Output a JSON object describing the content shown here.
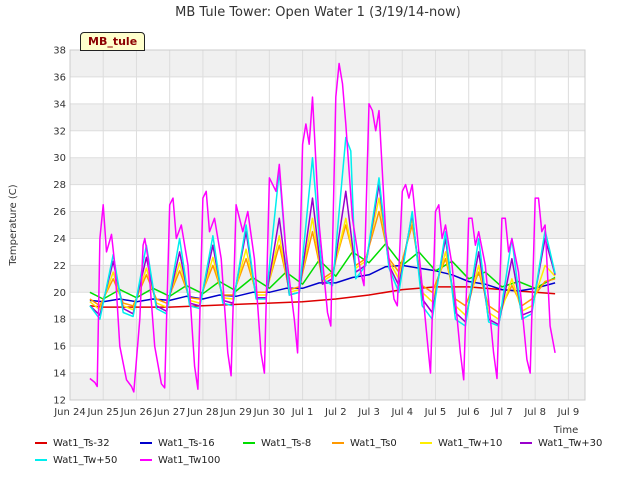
{
  "chart_data": {
    "type": "line",
    "title": "MB Tule Tower: Open Water 1 (3/19/14-now)",
    "xlabel": "Time",
    "ylabel": "Temperature (C)",
    "badge": "MB_tule",
    "ylim": [
      12,
      38
    ],
    "yticks": [
      12,
      14,
      16,
      18,
      20,
      22,
      24,
      26,
      28,
      30,
      32,
      34,
      36,
      38
    ],
    "xlim": [
      0,
      15.5
    ],
    "xticks": [
      {
        "pos": 0,
        "label": "Jun 24"
      },
      {
        "pos": 1,
        "label": "Jun 25"
      },
      {
        "pos": 2,
        "label": "Jun 26"
      },
      {
        "pos": 3,
        "label": "Jun 27"
      },
      {
        "pos": 4,
        "label": "Jun 28"
      },
      {
        "pos": 5,
        "label": "Jun 29"
      },
      {
        "pos": 6,
        "label": "Jun 30"
      },
      {
        "pos": 7,
        "label": "Jul 1"
      },
      {
        "pos": 8,
        "label": "Jul 2"
      },
      {
        "pos": 9,
        "label": "Jul 3"
      },
      {
        "pos": 10,
        "label": "Jul 4"
      },
      {
        "pos": 11,
        "label": "Jul 5"
      },
      {
        "pos": 12,
        "label": "Jul 6"
      },
      {
        "pos": 13,
        "label": "Jul 7"
      },
      {
        "pos": 14,
        "label": "Jul 8"
      },
      {
        "pos": 15,
        "label": "Jul 9"
      }
    ],
    "series": [
      {
        "name": "Wat1_Ts-32",
        "color": "#dd0000",
        "x": [
          0.6,
          1,
          2,
          3,
          4,
          5,
          6,
          7,
          8,
          9,
          10,
          11,
          12,
          13,
          13.5,
          14,
          14.6
        ],
        "y": [
          19.0,
          18.9,
          18.9,
          18.9,
          19.0,
          19.1,
          19.2,
          19.3,
          19.5,
          19.8,
          20.2,
          20.4,
          20.4,
          20.2,
          20.1,
          20.0,
          19.9
        ]
      },
      {
        "name": "Wat1_Ts-16",
        "color": "#0000cc",
        "x": [
          0.6,
          1,
          1.5,
          2,
          2.5,
          3,
          3.5,
          4,
          4.5,
          5,
          5.5,
          6,
          6.5,
          7,
          7.5,
          8,
          8.5,
          9,
          9.5,
          10,
          10.5,
          11,
          11.5,
          12,
          12.5,
          13,
          13.5,
          14,
          14.6
        ],
        "y": [
          19.4,
          19.3,
          19.5,
          19.3,
          19.5,
          19.4,
          19.7,
          19.5,
          19.8,
          19.7,
          20.0,
          20.0,
          20.3,
          20.3,
          20.7,
          20.7,
          21.1,
          21.3,
          21.9,
          22.0,
          21.8,
          21.6,
          21.3,
          20.8,
          20.6,
          20.2,
          20.1,
          20.3,
          20.7
        ]
      },
      {
        "name": "Wat1_Ts-8",
        "color": "#00dd00",
        "x": [
          0.6,
          1,
          1.5,
          2,
          2.5,
          3,
          3.5,
          4,
          4.5,
          5,
          5.5,
          6,
          6.5,
          7,
          7.5,
          8,
          8.5,
          9,
          9.5,
          10,
          10.5,
          11,
          11.5,
          12,
          12.5,
          13,
          13.5,
          14,
          14.6
        ],
        "y": [
          20.0,
          19.5,
          20.2,
          19.6,
          20.3,
          19.7,
          20.5,
          19.9,
          20.8,
          20.1,
          21.1,
          20.3,
          21.5,
          20.6,
          22.4,
          21.2,
          23.0,
          22.2,
          23.6,
          22.0,
          23.0,
          21.6,
          22.3,
          21.0,
          21.5,
          20.4,
          20.8,
          20.3,
          21.1
        ]
      },
      {
        "name": "Wat1_Ts0",
        "color": "#ff9900",
        "x": [
          0.6,
          0.9,
          1.3,
          1.6,
          1.9,
          2.3,
          2.6,
          2.9,
          3.3,
          3.6,
          3.9,
          4.3,
          4.6,
          4.9,
          5.3,
          5.6,
          5.9,
          6.3,
          6.6,
          6.9,
          7.3,
          7.6,
          7.9,
          8.3,
          8.6,
          8.9,
          9.3,
          9.6,
          9.9,
          10.3,
          10.6,
          10.9,
          11.3,
          11.6,
          11.9,
          12.3,
          12.6,
          12.9,
          13.3,
          13.6,
          13.9,
          14.3,
          14.6
        ],
        "y": [
          19.5,
          19.0,
          21.0,
          19.2,
          19.0,
          21.3,
          19.5,
          19.2,
          21.6,
          19.6,
          19.5,
          22.0,
          19.8,
          19.8,
          22.5,
          20.0,
          20.0,
          23.5,
          20.2,
          20.4,
          24.5,
          21.0,
          21.5,
          25.0,
          22.0,
          22.5,
          26.0,
          22.5,
          21.5,
          25.0,
          20.5,
          20.0,
          22.5,
          19.5,
          19.0,
          21.5,
          19.0,
          18.5,
          20.5,
          19.0,
          19.5,
          20.8,
          21.0
        ]
      },
      {
        "name": "Wat1_Tw+10",
        "color": "#ffee00",
        "x": [
          0.6,
          0.9,
          1.3,
          1.6,
          1.9,
          2.3,
          2.6,
          2.9,
          3.3,
          3.6,
          3.9,
          4.3,
          4.6,
          4.9,
          5.3,
          5.6,
          5.9,
          6.3,
          6.6,
          6.9,
          7.3,
          7.6,
          7.9,
          8.3,
          8.6,
          8.9,
          9.3,
          9.6,
          9.9,
          10.3,
          10.6,
          10.9,
          11.3,
          11.6,
          11.9,
          12.3,
          12.6,
          12.9,
          13.3,
          13.6,
          13.9,
          14.3,
          14.6
        ],
        "y": [
          19.3,
          18.7,
          21.5,
          19.0,
          18.7,
          21.8,
          19.2,
          18.9,
          22.2,
          19.4,
          19.2,
          22.6,
          19.6,
          19.5,
          23.2,
          19.8,
          19.8,
          24.2,
          20.0,
          20.2,
          25.5,
          20.8,
          21.3,
          25.5,
          21.8,
          22.3,
          27.0,
          22.3,
          21.0,
          25.5,
          20.0,
          19.3,
          23.0,
          19.0,
          18.3,
          22.0,
          18.5,
          18.0,
          21.0,
          18.6,
          19.0,
          22.0,
          21.2
        ]
      },
      {
        "name": "Wat1_Tw+30",
        "color": "#9900cc",
        "x": [
          0.6,
          0.9,
          1.3,
          1.6,
          1.9,
          2.3,
          2.6,
          2.9,
          3.3,
          3.6,
          3.9,
          4.3,
          4.6,
          4.9,
          5.3,
          5.6,
          5.9,
          6.3,
          6.6,
          6.9,
          7.3,
          7.6,
          7.9,
          8.3,
          8.6,
          8.9,
          9.3,
          9.6,
          9.9,
          10.3,
          10.6,
          10.9,
          11.3,
          11.6,
          11.9,
          12.3,
          12.6,
          12.9,
          13.3,
          13.6,
          13.9,
          14.3,
          14.6
        ],
        "y": [
          19.0,
          18.3,
          22.3,
          18.8,
          18.4,
          22.6,
          19.0,
          18.6,
          23.0,
          19.2,
          19.0,
          23.5,
          19.4,
          19.2,
          24.5,
          19.6,
          19.6,
          25.5,
          19.8,
          20.0,
          27.0,
          20.6,
          21.0,
          27.5,
          21.5,
          22.0,
          28.0,
          22.0,
          20.5,
          25.8,
          19.5,
          18.5,
          24.0,
          18.5,
          17.8,
          23.0,
          18.0,
          17.6,
          22.5,
          18.3,
          18.6,
          24.0,
          21.3
        ]
      },
      {
        "name": "Wat1_Tw+50",
        "color": "#00eeee",
        "x": [
          0.6,
          0.9,
          1.3,
          1.6,
          1.9,
          2.3,
          2.6,
          2.9,
          3.3,
          3.6,
          3.9,
          4.3,
          4.6,
          4.9,
          5.3,
          5.6,
          5.9,
          6.3,
          6.6,
          6.9,
          7.3,
          7.6,
          7.9,
          8.3,
          8.45,
          8.6,
          8.9,
          9.3,
          9.6,
          9.9,
          10.3,
          10.6,
          10.9,
          11.3,
          11.6,
          11.9,
          12.3,
          12.6,
          12.9,
          13.3,
          13.6,
          13.9,
          14.3,
          14.6
        ],
        "y": [
          19.0,
          18.0,
          22.8,
          18.5,
          18.2,
          23.5,
          18.8,
          18.4,
          24.0,
          19.0,
          18.8,
          24.2,
          19.2,
          19.0,
          25.0,
          19.5,
          19.5,
          29.0,
          19.8,
          20.0,
          30.0,
          21.0,
          20.5,
          31.5,
          30.5,
          21.0,
          22.0,
          28.5,
          21.8,
          20.0,
          26.0,
          19.0,
          18.0,
          24.5,
          18.0,
          17.5,
          24.0,
          17.8,
          17.5,
          24.0,
          18.0,
          18.4,
          24.6,
          21.4
        ]
      },
      {
        "name": "Wat1_Tw100",
        "color": "#ff00ff",
        "x": [
          0.6,
          0.75,
          0.82,
          0.9,
          1.0,
          1.1,
          1.25,
          1.35,
          1.5,
          1.7,
          1.85,
          1.92,
          2.1,
          2.2,
          2.25,
          2.35,
          2.55,
          2.75,
          2.85,
          3.0,
          3.1,
          3.2,
          3.35,
          3.55,
          3.75,
          3.85,
          4.0,
          4.1,
          4.2,
          4.35,
          4.55,
          4.75,
          4.85,
          5.0,
          5.1,
          5.2,
          5.35,
          5.55,
          5.75,
          5.85,
          6.0,
          6.1,
          6.2,
          6.3,
          6.5,
          6.75,
          6.85,
          7.0,
          7.1,
          7.2,
          7.3,
          7.5,
          7.75,
          7.85,
          8.0,
          8.1,
          8.2,
          8.3,
          8.5,
          8.75,
          8.85,
          9.0,
          9.1,
          9.2,
          9.3,
          9.5,
          9.75,
          9.85,
          10.0,
          10.1,
          10.2,
          10.3,
          10.5,
          10.75,
          10.85,
          11.0,
          11.1,
          11.2,
          11.3,
          11.5,
          11.75,
          11.85,
          12.0,
          12.1,
          12.2,
          12.3,
          12.5,
          12.75,
          12.85,
          13.0,
          13.1,
          13.2,
          13.3,
          13.5,
          13.75,
          13.85,
          14.0,
          14.1,
          14.2,
          14.3,
          14.45,
          14.6
        ],
        "y": [
          13.6,
          13.3,
          13.0,
          24.0,
          26.5,
          23.0,
          24.3,
          22.0,
          16.0,
          13.5,
          13.0,
          12.6,
          18.0,
          23.5,
          24.0,
          22.5,
          16.0,
          13.2,
          12.9,
          26.5,
          27.0,
          24.0,
          25.0,
          22.0,
          14.5,
          12.8,
          27.0,
          27.5,
          24.5,
          25.5,
          22.5,
          15.5,
          13.8,
          26.5,
          25.5,
          24.5,
          26.0,
          22.5,
          15.5,
          14.0,
          28.5,
          28.0,
          27.5,
          29.5,
          23.0,
          18.0,
          15.5,
          31.0,
          32.5,
          31.0,
          34.5,
          25.0,
          18.5,
          17.5,
          34.5,
          37.0,
          35.5,
          32.5,
          25.5,
          21.5,
          20.5,
          34.0,
          33.5,
          32.0,
          33.5,
          24.5,
          19.5,
          19.0,
          27.5,
          28.0,
          27.0,
          28.0,
          23.0,
          16.5,
          14.0,
          26.0,
          26.5,
          24.0,
          25.0,
          22.0,
          15.5,
          13.5,
          25.5,
          25.5,
          23.5,
          24.5,
          22.0,
          15.5,
          13.6,
          25.5,
          25.5,
          23.0,
          24.0,
          21.5,
          15.0,
          14.0,
          27.0,
          27.0,
          24.5,
          25.0,
          17.5,
          15.5
        ]
      }
    ]
  }
}
